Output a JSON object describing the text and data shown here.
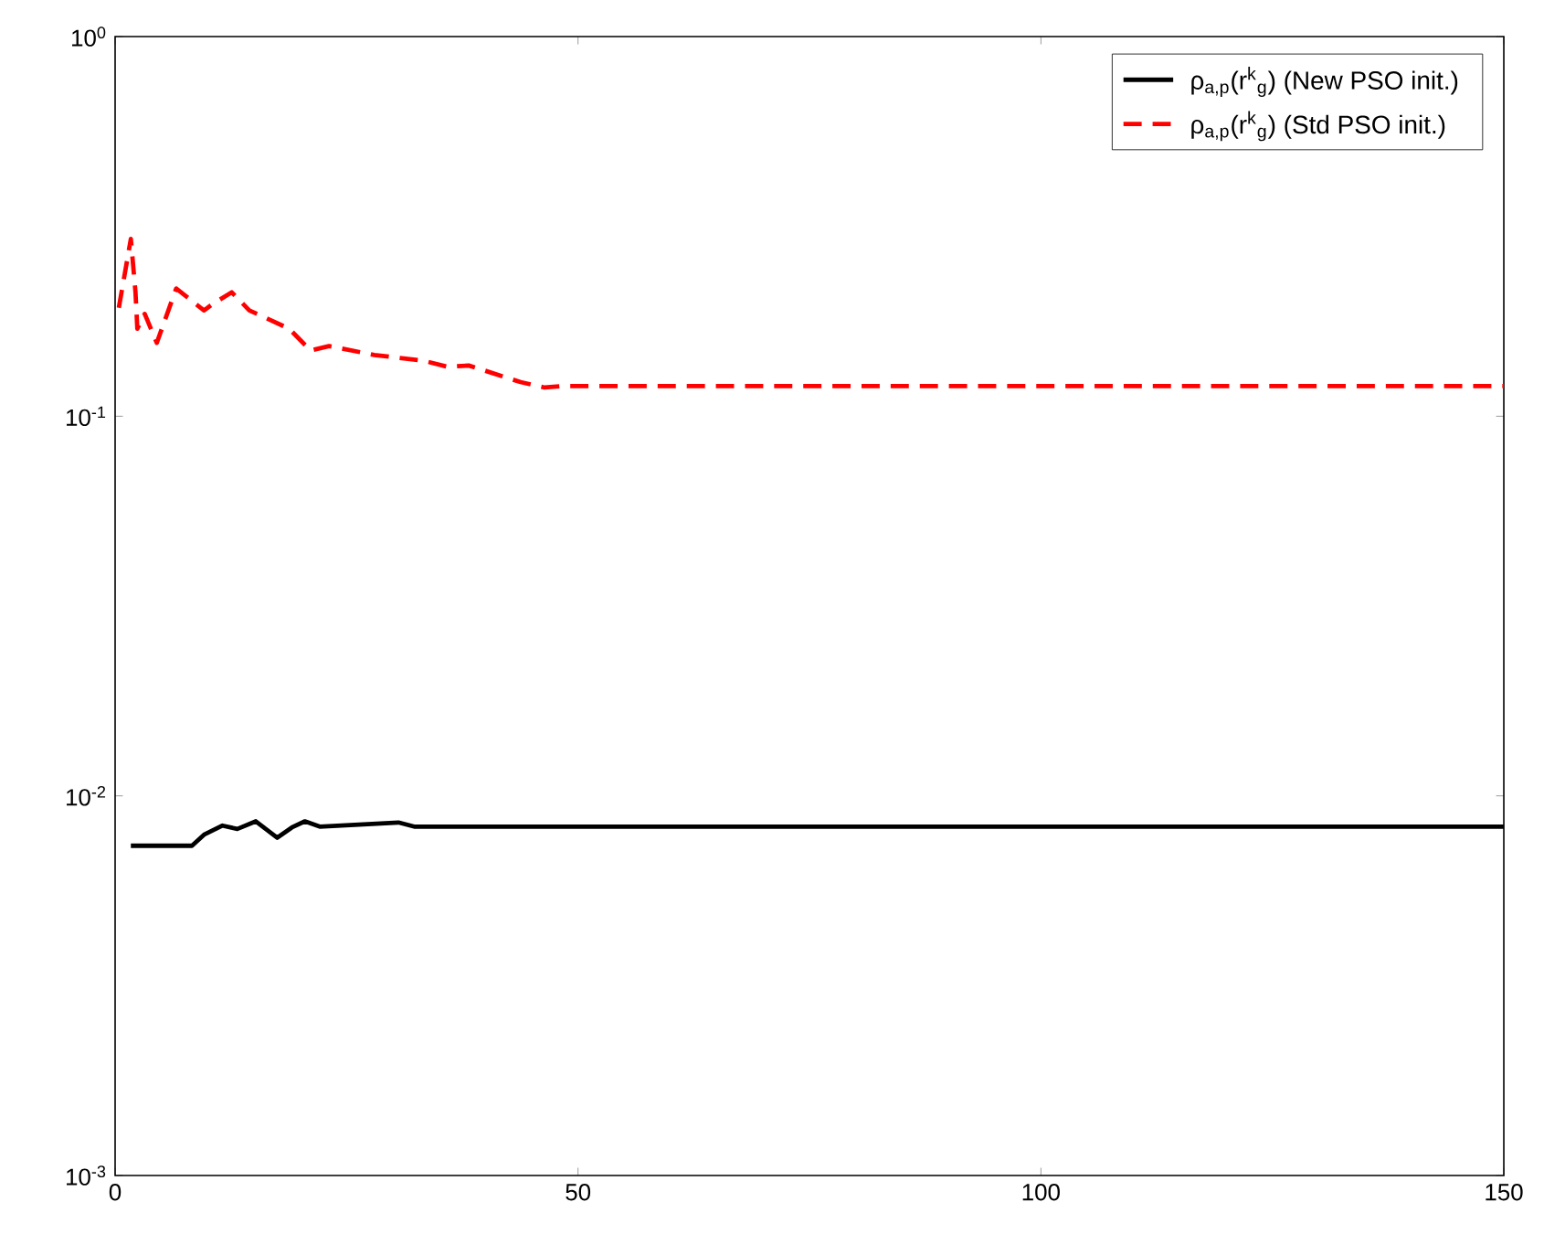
{
  "chart_data": {
    "type": "line",
    "log": "y",
    "xlim": [
      0,
      150
    ],
    "ylim": [
      0.001,
      1
    ],
    "xticks": [
      0,
      50,
      100,
      150
    ],
    "yticks": [
      {
        "value": 0.001,
        "label": "10$^{-3}$"
      },
      {
        "value": 0.01,
        "label": "10$^{-2}$"
      },
      {
        "value": 0.1,
        "label": "10$^{-1}$"
      },
      {
        "value": 1,
        "label": "10$^{0}$"
      }
    ],
    "legend": "top right",
    "grid": false,
    "series": [
      {
        "name": "ρ$_{a,p}$(r$^{k}$$_{g}$) (New PSO init.)",
        "color": "#000000",
        "line_style": "solid",
        "x": [
          1.7,
          8.3,
          9.6,
          11.6,
          13.2,
          15.2,
          17.5,
          19.1,
          20.5,
          22.1,
          30.6,
          32.3,
          150
        ],
        "values": [
          0.00739,
          0.00739,
          0.0079,
          0.00835,
          0.00818,
          0.00857,
          0.00776,
          0.00826,
          0.00857,
          0.0083,
          0.00851,
          0.0083,
          0.0083
        ]
      },
      {
        "name": "ρ$_{a,p}$(r$^{k}$$_{g}$) (Std PSO init.)",
        "color": "#ff0000",
        "line_style": "dashed",
        "x": [
          0.4,
          1.7,
          2.2,
          2.4,
          3.2,
          4.5,
          6.6,
          9.6,
          10.6,
          12.6,
          14.5,
          18.8,
          21.1,
          23.1,
          28,
          33.3,
          35.9,
          38.2,
          43.8,
          46.4,
          48.1,
          150
        ],
        "values": [
          0.193,
          0.293,
          0.212,
          0.17,
          0.186,
          0.156,
          0.217,
          0.19,
          0.198,
          0.212,
          0.19,
          0.17,
          0.149,
          0.153,
          0.145,
          0.14,
          0.135,
          0.136,
          0.123,
          0.119,
          0.12,
          0.12
        ]
      }
    ]
  }
}
